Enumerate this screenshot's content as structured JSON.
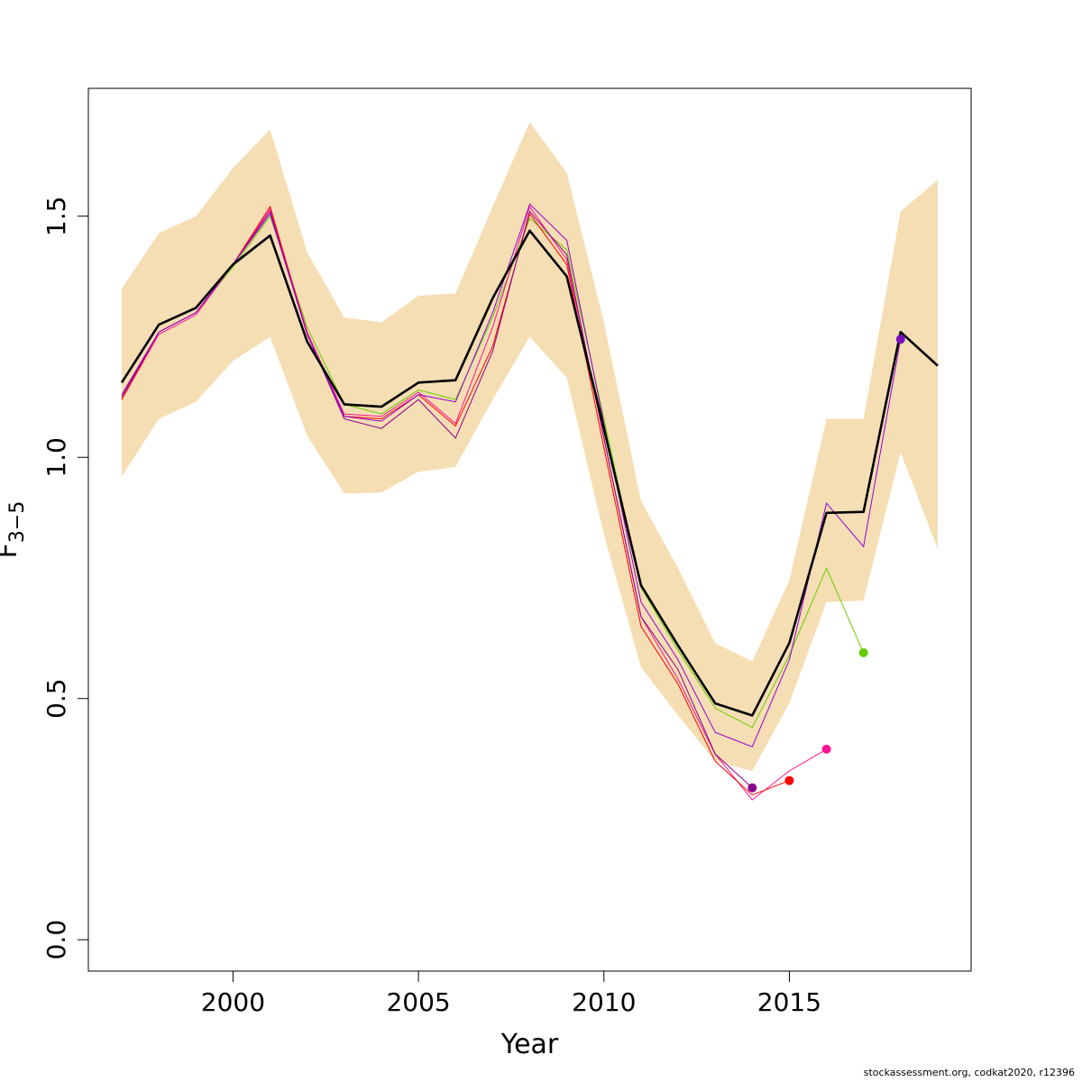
{
  "chart_data": {
    "type": "line",
    "xlabel": "Year",
    "ylabel": "F",
    "ylabel_subscript": "3−5",
    "xlim": [
      1996.1,
      2019.9
    ],
    "ylim": [
      -0.065,
      1.765
    ],
    "xticks": [
      2000,
      2005,
      2010,
      2015
    ],
    "yticks": [
      0.0,
      0.5,
      1.0,
      1.5
    ],
    "ytick_labels": [
      "0.0",
      "0.5",
      "1.0",
      "1.5"
    ],
    "years": [
      1997,
      1998,
      1999,
      2000,
      2001,
      2002,
      2003,
      2004,
      2005,
      2006,
      2007,
      2008,
      2009,
      2010,
      2011,
      2012,
      2013,
      2014,
      2015,
      2016,
      2017,
      2018,
      2019
    ],
    "band": {
      "color": "#f5deb3",
      "lower": [
        0.96,
        1.08,
        1.115,
        1.2,
        1.25,
        1.045,
        0.925,
        0.927,
        0.97,
        0.98,
        1.12,
        1.25,
        1.165,
        0.84,
        0.565,
        0.465,
        0.37,
        0.35,
        0.49,
        0.7,
        0.703,
        1.01,
        0.81
      ],
      "upper": [
        1.35,
        1.465,
        1.5,
        1.6,
        1.68,
        1.425,
        1.29,
        1.28,
        1.335,
        1.34,
        1.52,
        1.695,
        1.59,
        1.28,
        0.91,
        0.77,
        0.615,
        0.577,
        0.745,
        1.08,
        1.08,
        1.51,
        1.575
      ]
    },
    "main_series": {
      "color": "#000000",
      "values": [
        1.155,
        1.275,
        1.31,
        1.4,
        1.46,
        1.24,
        1.11,
        1.105,
        1.155,
        1.16,
        1.33,
        1.47,
        1.375,
        1.06,
        0.735,
        0.61,
        0.49,
        0.465,
        0.615,
        0.885,
        0.887,
        1.26,
        1.19
      ]
    },
    "retro_series": [
      {
        "color": "#66cc00",
        "start_year": 1997,
        "values": [
          1.13,
          1.26,
          1.3,
          1.395,
          1.5,
          1.27,
          1.11,
          1.09,
          1.14,
          1.12,
          1.29,
          1.495,
          1.43,
          1.08,
          0.73,
          0.6,
          0.48,
          0.44,
          0.59,
          0.77,
          0.595
        ]
      },
      {
        "color": "#ff1493",
        "start_year": 1997,
        "values": [
          1.12,
          1.255,
          1.295,
          1.4,
          1.515,
          1.26,
          1.09,
          1.085,
          1.135,
          1.07,
          1.27,
          1.52,
          1.41,
          1.04,
          0.67,
          0.54,
          0.385,
          0.29,
          0.35,
          0.395
        ]
      },
      {
        "color": "#ff0000",
        "start_year": 1997,
        "values": [
          1.12,
          1.26,
          1.3,
          1.4,
          1.52,
          1.255,
          1.085,
          1.08,
          1.13,
          1.065,
          1.23,
          1.505,
          1.4,
          1.02,
          0.65,
          0.53,
          0.37,
          0.3,
          0.33
        ]
      },
      {
        "color": "#8b008b",
        "start_year": 1997,
        "values": [
          1.125,
          1.26,
          1.3,
          1.4,
          1.51,
          1.255,
          1.08,
          1.06,
          1.12,
          1.04,
          1.22,
          1.51,
          1.42,
          1.04,
          0.67,
          0.56,
          0.385,
          0.315
        ]
      },
      {
        "color": "#9400d3",
        "start_year": 1997,
        "values": [
          1.13,
          1.26,
          1.3,
          1.4,
          1.505,
          1.255,
          1.085,
          1.075,
          1.13,
          1.115,
          1.3,
          1.525,
          1.45,
          1.07,
          0.7,
          0.58,
          0.43,
          0.4,
          0.58,
          0.905,
          0.815,
          1.245
        ]
      }
    ],
    "endpoint_colors": [
      "#66cc00",
      "#ff1493",
      "#ff0000",
      "#8b008b",
      "#7b10c0"
    ]
  },
  "footer": {
    "note": "stockassessment.org, codkat2020, r12396"
  }
}
